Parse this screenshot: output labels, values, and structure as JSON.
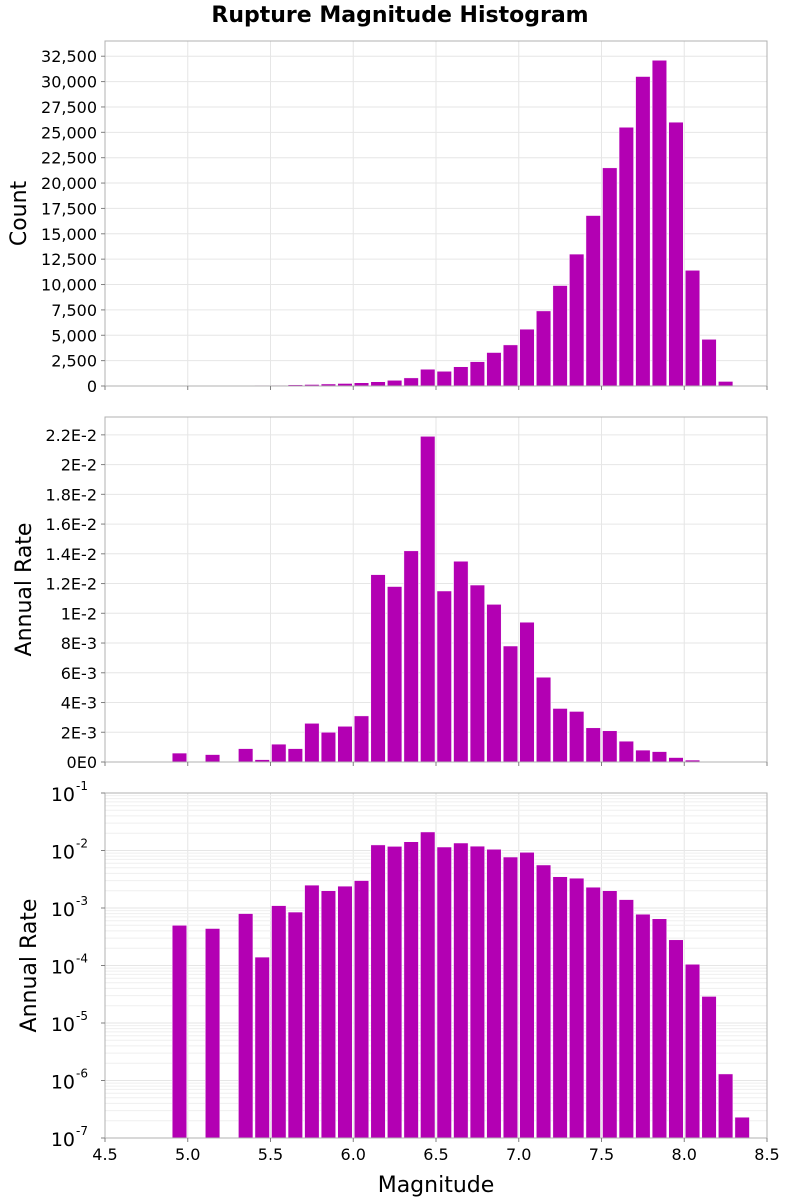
{
  "title": "Rupture Magnitude Histogram",
  "colors": {
    "bar": "#b300b3",
    "bar_edge": "#ffffff"
  },
  "chart_data": [
    {
      "type": "bar",
      "title": "Rupture Magnitude Histogram",
      "ylabel": "Count",
      "xlabel": "",
      "xlim": [
        4.5,
        8.5
      ],
      "ylim": [
        0,
        34000
      ],
      "scale": "linear",
      "bin_width": 0.1,
      "bin_centers": [
        4.55,
        4.65,
        4.75,
        4.85,
        4.95,
        5.05,
        5.15,
        5.25,
        5.35,
        5.45,
        5.55,
        5.65,
        5.75,
        5.85,
        5.95,
        6.05,
        6.15,
        6.25,
        6.35,
        6.45,
        6.55,
        6.65,
        6.75,
        6.85,
        6.95,
        7.05,
        7.15,
        7.25,
        7.35,
        7.45,
        7.55,
        7.65,
        7.75,
        7.85,
        7.95,
        8.05,
        8.15,
        8.25,
        8.35,
        8.45
      ],
      "values": [
        0,
        0,
        0,
        0,
        20,
        0,
        30,
        0,
        40,
        60,
        80,
        120,
        150,
        200,
        250,
        320,
        420,
        560,
        800,
        1650,
        1450,
        1900,
        2400,
        3300,
        4050,
        5600,
        7400,
        9900,
        13000,
        16800,
        21500,
        25500,
        30500,
        32100,
        26000,
        11400,
        4600,
        450,
        0,
        0
      ],
      "yticks": [
        "0",
        "2,500",
        "5,000",
        "7,500",
        "10,000",
        "12,500",
        "15,000",
        "17,500",
        "20,000",
        "22,500",
        "25,000",
        "27,500",
        "30,000",
        "32,500"
      ]
    },
    {
      "type": "bar",
      "ylabel": "Annual Rate",
      "xlabel": "",
      "xlim": [
        4.5,
        8.5
      ],
      "ylim": [
        0,
        0.0232
      ],
      "scale": "linear",
      "bin_width": 0.1,
      "bin_centers": [
        4.55,
        4.65,
        4.75,
        4.85,
        4.95,
        5.05,
        5.15,
        5.25,
        5.35,
        5.45,
        5.55,
        5.65,
        5.75,
        5.85,
        5.95,
        6.05,
        6.15,
        6.25,
        6.35,
        6.45,
        6.55,
        6.65,
        6.75,
        6.85,
        6.95,
        7.05,
        7.15,
        7.25,
        7.35,
        7.45,
        7.55,
        7.65,
        7.75,
        7.85,
        7.95,
        8.05,
        8.15,
        8.25,
        8.35,
        8.45
      ],
      "values": [
        0,
        0,
        0,
        0,
        0.0006,
        0,
        0.0005,
        0,
        0.0009,
        0.00016,
        0.0012,
        0.0009,
        0.0026,
        0.002,
        0.0024,
        0.0031,
        0.0126,
        0.0118,
        0.0142,
        0.0219,
        0.0115,
        0.0135,
        0.0119,
        0.0106,
        0.0078,
        0.0094,
        0.0057,
        0.0036,
        0.0034,
        0.0023,
        0.0021,
        0.0014,
        0.0008,
        0.0007,
        0.0003,
        0.00013,
        3e-05,
        1.2e-06,
        2e-07,
        0
      ],
      "yticks": [
        "0E0",
        "2E-3",
        "4E-3",
        "6E-3",
        "8E-3",
        "1E-2",
        "1.2E-2",
        "1.4E-2",
        "1.6E-2",
        "1.8E-2",
        "2E-2",
        "2.2E-2"
      ]
    },
    {
      "type": "bar",
      "ylabel": "Annual Rate",
      "xlabel": "Magnitude",
      "xlim": [
        4.5,
        8.5
      ],
      "ylim": [
        1e-07,
        0.1
      ],
      "scale": "log",
      "bin_width": 0.1,
      "bin_centers": [
        4.55,
        4.65,
        4.75,
        4.85,
        4.95,
        5.05,
        5.15,
        5.25,
        5.35,
        5.45,
        5.55,
        5.65,
        5.75,
        5.85,
        5.95,
        6.05,
        6.15,
        6.25,
        6.35,
        6.45,
        6.55,
        6.65,
        6.75,
        6.85,
        6.95,
        7.05,
        7.15,
        7.25,
        7.35,
        7.45,
        7.55,
        7.65,
        7.75,
        7.85,
        7.95,
        8.05,
        8.15,
        8.25,
        8.35,
        8.45
      ],
      "values": [
        0,
        0,
        0,
        0,
        0.0005,
        0,
        0.00044,
        0,
        0.0008,
        0.00014,
        0.0011,
        0.00085,
        0.0025,
        0.002,
        0.0024,
        0.003,
        0.0125,
        0.0118,
        0.0142,
        0.021,
        0.0115,
        0.0135,
        0.0119,
        0.0105,
        0.0077,
        0.0093,
        0.0056,
        0.0035,
        0.0033,
        0.0023,
        0.002,
        0.0014,
        0.00078,
        0.00065,
        0.00028,
        0.000105,
        2.9e-05,
        1.3e-06,
        2.3e-07,
        0
      ],
      "ytick_base": "10",
      "ytick_exponents": [
        "-7",
        "-6",
        "-5",
        "-4",
        "-3",
        "-2",
        "-1"
      ],
      "xticks": [
        "4.5",
        "5.0",
        "5.5",
        "6.0",
        "6.5",
        "7.0",
        "7.5",
        "8.0",
        "8.5"
      ]
    }
  ]
}
